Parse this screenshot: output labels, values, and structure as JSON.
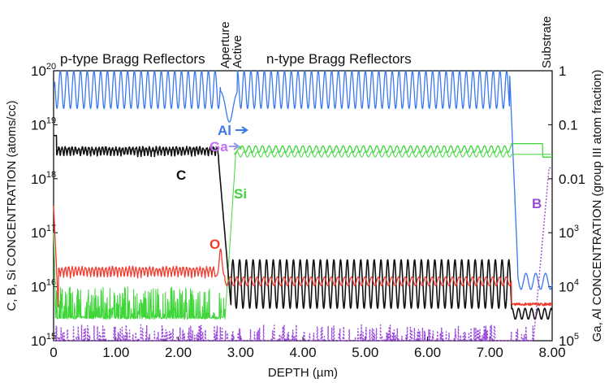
{
  "chart_data": {
    "type": "line",
    "xlabel": "DEPTH (µm)",
    "ylabel_left": "C, B, Si CONCENTRATION (atoms/cc)",
    "ylabel_right": "Ga, Al CONCENTRATION (group III atom fraction)",
    "xlim": [
      0,
      8.0
    ],
    "ylim_left_log10": [
      15,
      20
    ],
    "ylim_right_log10": [
      -5,
      0
    ],
    "x_ticks": [
      "0",
      "1.00",
      "2.00",
      "3.00",
      "4.00",
      "5.00",
      "6.00",
      "7.00",
      "8.00"
    ],
    "left_ticks": [
      {
        "base": "10",
        "exp": "15"
      },
      {
        "base": "10",
        "exp": "16"
      },
      {
        "base": "10",
        "exp": "17"
      },
      {
        "base": "10",
        "exp": "18"
      },
      {
        "base": "10",
        "exp": "19"
      },
      {
        "base": "10",
        "exp": "20"
      }
    ],
    "right_ticks": [
      {
        "base": "10",
        "exp": "5"
      },
      {
        "base": "10",
        "exp": "4"
      },
      {
        "base": "10",
        "exp": "3"
      },
      {
        "text": "0.01"
      },
      {
        "text": "0.1"
      },
      {
        "text": "1"
      }
    ],
    "regions": [
      {
        "label": "p-type Bragg Reflectors"
      },
      {
        "label": "n-type Bragg Reflectors"
      }
    ],
    "vertical_labels": [
      "Aperture",
      "Active",
      "Substrate"
    ],
    "series": [
      {
        "name": "Al",
        "axis": "right",
        "color": "#3a78f0",
        "description": "oscillates ~0.2-1.0 in mirrors, ~1e-4 in substrate"
      },
      {
        "name": "Ga",
        "axis": "right",
        "color": "#3fd63a",
        "description": "~0.035-0.05 in n-mirror, ~0.04 near substrate"
      },
      {
        "name": "Si",
        "axis": "left",
        "color": "#3fd63a",
        "description": "~4e15-1e16 in p-region, rises to ~3e18 at n-region"
      },
      {
        "name": "C",
        "axis": "left",
        "color": "#111111",
        "description": "~2.5e18 in p-region, ~1e16 oscillating in n-region"
      },
      {
        "name": "O",
        "axis": "left",
        "color": "#f03a2e",
        "description": "~1.5e16 throughout"
      },
      {
        "name": "B",
        "axis": "left",
        "color": "#9a4cd8",
        "description": "~1e15 noise, rises to ~1e18 in substrate"
      }
    ]
  }
}
